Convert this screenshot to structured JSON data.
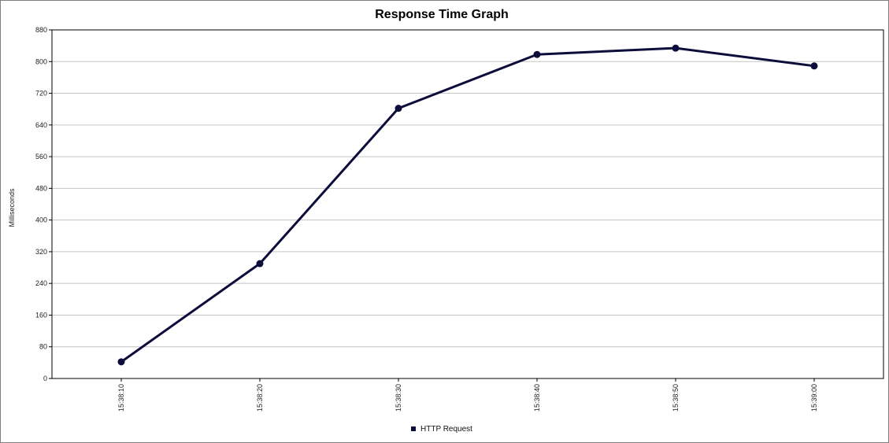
{
  "chart_data": {
    "type": "line",
    "title": "Response Time Graph",
    "xlabel": "",
    "ylabel": "Milliseconds",
    "x": [
      "15:38:10",
      "15:38:20",
      "15:38:30",
      "15:38:40",
      "15:38:50",
      "15:39:00"
    ],
    "series": [
      {
        "name": "HTTP Request",
        "color": "#0d0d3b",
        "values": [
          42,
          290,
          682,
          818,
          834,
          789
        ]
      }
    ],
    "ylim": [
      0,
      880
    ],
    "yticks": [
      0,
      80,
      160,
      240,
      320,
      400,
      480,
      560,
      640,
      720,
      800,
      880
    ],
    "grid": true,
    "legend_position": "bottom-center"
  }
}
